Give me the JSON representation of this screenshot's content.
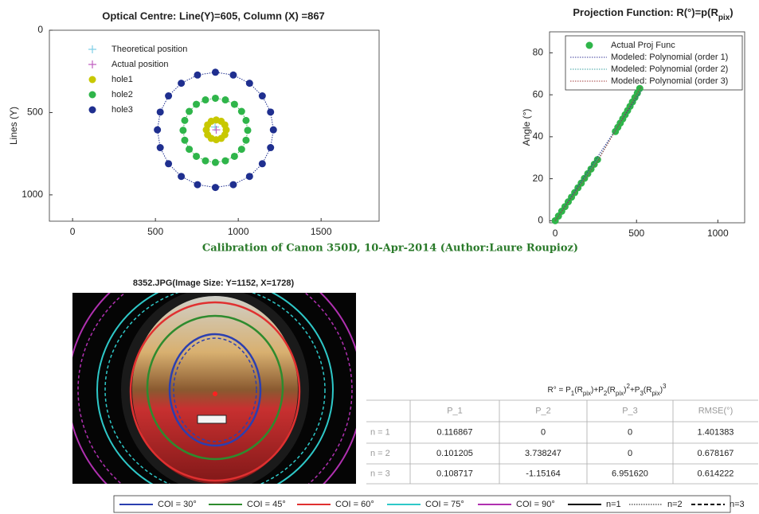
{
  "chart_data": [
    {
      "type": "scatter",
      "title": "Optical Centre: Line(Y)=605, Column (X) =867",
      "ylabel": "Lines (Y)",
      "xlim": [
        -140,
        1850
      ],
      "ylim": [
        0,
        1160
      ],
      "y_inverted": true,
      "xticks": [
        0,
        500,
        1000,
        1500
      ],
      "yticks": [
        0,
        500,
        1000
      ],
      "legend": "upper left",
      "series": [
        {
          "name": "Theoretical position",
          "color": "#7fcfe6",
          "marker": "plus",
          "x": [
            860
          ],
          "values": [
            588
          ]
        },
        {
          "name": "Actual position",
          "color": "#c060c0",
          "marker": "plus",
          "x": [
            867
          ],
          "values": [
            605
          ]
        },
        {
          "name": "hole1",
          "color": "#c8c800",
          "marker": "circle",
          "linestyle": "dotted",
          "closed": true,
          "x": [
            927,
            919,
            897,
            867,
            837,
            815,
            807,
            815,
            837,
            867,
            897,
            919
          ],
          "values": [
            605,
            635,
            657,
            665,
            657,
            635,
            605,
            575,
            553,
            545,
            553,
            575
          ]
        },
        {
          "name": "hole2",
          "color": "#2fb54a",
          "marker": "circle",
          "linestyle": "dotted",
          "closed": true,
          "x": [
            1057,
            1047,
            1020,
            977,
            922,
            862,
            802,
            747,
            704,
            677,
            667,
            677,
            704,
            747,
            802,
            862,
            922,
            977,
            1020,
            1047
          ],
          "values": [
            608,
            668,
            723,
            766,
            793,
            803,
            793,
            766,
            723,
            668,
            608,
            548,
            493,
            450,
            423,
            413,
            423,
            450,
            493,
            548
          ]
        },
        {
          "name": "hole3",
          "color": "#1f2f8f",
          "marker": "circle",
          "linestyle": "dotted",
          "closed": true,
          "x": [
            1212,
            1195,
            1145,
            1068,
            970,
            862,
            754,
            656,
            579,
            529,
            512,
            529,
            579,
            656,
            754,
            862,
            970,
            1068,
            1145,
            1195
          ],
          "values": [
            605,
            713,
            811,
            888,
            938,
            955,
            938,
            888,
            811,
            713,
            605,
            497,
            399,
            322,
            272,
            255,
            272,
            322,
            399,
            497
          ]
        }
      ]
    },
    {
      "type": "scatter",
      "title": "Projection Function: R(°)=p(R",
      "title_sub": "pix",
      "title_end": ")",
      "ylabel": "Angle (°)",
      "xlim": [
        -35,
        1165
      ],
      "ylim": [
        -1,
        90
      ],
      "xticks": [
        0,
        500,
        1000
      ],
      "yticks": [
        0,
        20,
        40,
        60,
        80
      ],
      "legend": "upper right",
      "series": [
        {
          "name": "Actual Proj Func",
          "color": "#2fb54a",
          "marker": "circle",
          "x": [
            0,
            20,
            40,
            60,
            80,
            100,
            120,
            140,
            160,
            180,
            200,
            220,
            240,
            260,
            370,
            385,
            400,
            415,
            430,
            445,
            460,
            475,
            490,
            505,
            520
          ],
          "values": [
            0,
            2.2,
            4.5,
            6.7,
            9,
            11.2,
            13.4,
            15.7,
            17.9,
            20.2,
            22.4,
            24.6,
            26.9,
            29.1,
            42.5,
            44.5,
            46.5,
            48.5,
            50.5,
            52.5,
            54.5,
            56.6,
            58.7,
            60.8,
            63
          ]
        },
        {
          "name": "Modeled: Polynomial (order 1)",
          "color": "#3a3a9a",
          "linestyle": "dotted",
          "x": [
            0,
            265,
            530
          ],
          "values": [
            0,
            31,
            62
          ]
        },
        {
          "name": "Modeled: Polynomial (order 2)",
          "color": "#3aa0a0",
          "linestyle": "dotted",
          "x": [
            0,
            265,
            530
          ],
          "values": [
            0,
            29.5,
            64
          ]
        },
        {
          "name": "Modeled: Polynomial (order 3)",
          "color": "#a03a3a",
          "linestyle": "dotted",
          "x": [
            0,
            265,
            530
          ],
          "values": [
            0,
            29,
            64
          ]
        }
      ]
    }
  ],
  "suptitle": "Calibration of Canon 350D, 10-Apr-2014 (Author:Laure Roupioz)",
  "image_title": "8352.JPG(Image Size: Y=1152, X=1728)",
  "table": {
    "formula": [
      "R° = P",
      "1",
      "(R",
      "pix",
      ")+P",
      "2",
      "(R",
      "pix",
      ")",
      "2",
      "+P",
      "3",
      "(R",
      "pix",
      ")",
      "3"
    ],
    "columns": [
      "P_1",
      "P_2",
      "P_3",
      "RMSE(°)"
    ],
    "rows": [
      {
        "label": "n = 1",
        "cells": [
          "0.116867",
          "0",
          "0",
          "1.401383"
        ]
      },
      {
        "label": "n = 2",
        "cells": [
          "0.101205",
          "3.738247",
          "0",
          "0.678167"
        ]
      },
      {
        "label": "n = 3",
        "cells": [
          "0.108717",
          "-1.15164",
          "6.951620",
          "0.614222"
        ]
      }
    ]
  },
  "legend": {
    "items": [
      {
        "label": "COI = 30°",
        "color": "#2b3fb0",
        "style": "solid"
      },
      {
        "label": "COI = 45°",
        "color": "#2e8b2e",
        "style": "solid"
      },
      {
        "label": "COI = 60°",
        "color": "#e03030",
        "style": "solid"
      },
      {
        "label": "COI = 75°",
        "color": "#2ec8c8",
        "style": "solid"
      },
      {
        "label": "COI = 90°",
        "color": "#b030b0",
        "style": "solid"
      },
      {
        "label": "n=1",
        "color": "#000000",
        "style": "solid"
      },
      {
        "label": "n=2",
        "color": "#888888",
        "style": "dotted"
      },
      {
        "label": "n=3",
        "color": "#000000",
        "style": "dashed"
      }
    ]
  }
}
